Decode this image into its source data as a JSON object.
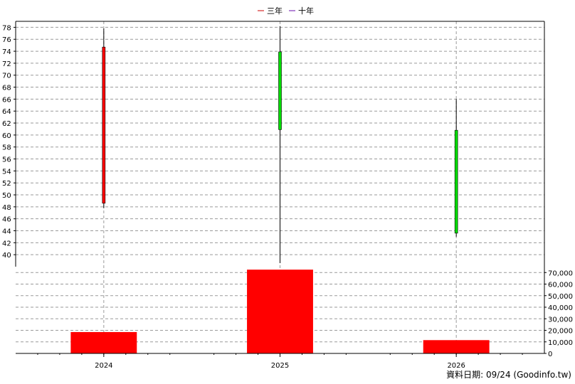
{
  "legend": [
    {
      "label": "三年",
      "color": "#cc0000"
    },
    {
      "label": "十年",
      "color": "#6a0dad"
    }
  ],
  "footer": "資料日期: 09/24  (Goodinfo.tw)",
  "colors": {
    "up": "#ff0000",
    "down": "#00dd00",
    "volume": "#ff0000"
  },
  "chart_data": {
    "type": "candlestick",
    "categories": [
      "2024",
      "2025",
      "2026"
    ],
    "price": {
      "ylim": [
        38,
        79
      ],
      "ticks": [
        40,
        42,
        44,
        46,
        48,
        50,
        52,
        54,
        56,
        58,
        60,
        62,
        64,
        66,
        68,
        70,
        72,
        74,
        76,
        78
      ],
      "candles": [
        {
          "x": "2024",
          "open": 48.6,
          "close": 74.7,
          "high": 77.8,
          "low": 47.8,
          "direction": "up"
        },
        {
          "x": "2025",
          "open": 73.9,
          "close": 60.9,
          "high": 78.2,
          "low": 38.6,
          "direction": "down"
        },
        {
          "x": "2026",
          "open": 60.8,
          "close": 43.6,
          "high": 66.0,
          "low": 43.0,
          "direction": "down"
        }
      ]
    },
    "volume": {
      "ylim": [
        0,
        72000
      ],
      "ticks": [
        "0",
        "10,000",
        "20,000",
        "30,000",
        "40,000",
        "50,000",
        "60,000",
        "70,000"
      ],
      "tick_values": [
        0,
        10000,
        20000,
        30000,
        40000,
        50000,
        60000,
        70000
      ],
      "values": [
        18500,
        72500,
        11500
      ]
    },
    "grid": true,
    "legend_position": "top-center"
  }
}
